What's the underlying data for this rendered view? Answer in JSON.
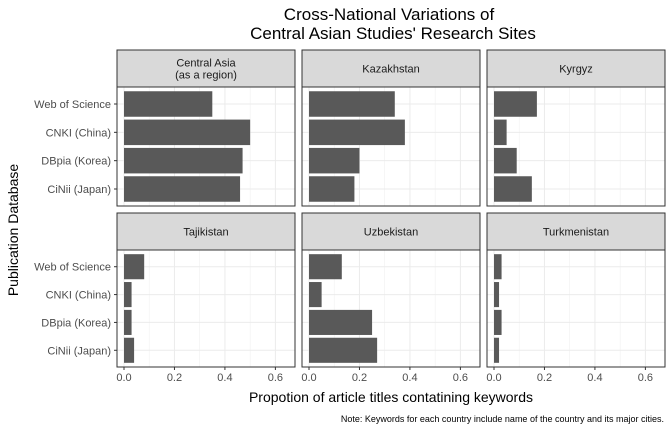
{
  "chart_data": {
    "type": "bar",
    "orientation": "horizontal",
    "title": [
      "Cross-National Variations of",
      "Central Asian Studies' Research Sites"
    ],
    "xlabel": "Propotion of article titles contatining keywords",
    "ylabel": "Publication Database",
    "note": "Note: Keywords for each country include name of the country and its major cities.",
    "categories": [
      "Web of Science",
      "CNKI (China)",
      "DBpia (Korea)",
      "CiNii (Japan)"
    ],
    "xlim": [
      0,
      0.65
    ],
    "xticks": [
      0.0,
      0.2,
      0.4,
      0.6
    ],
    "xtick_labels": [
      "0.0",
      "0.2",
      "0.4",
      "0.6"
    ],
    "grid": true,
    "bar_color": "#595959",
    "panels": [
      {
        "name": [
          "Central Asia",
          "(as a region)"
        ],
        "values": [
          0.35,
          0.5,
          0.47,
          0.46
        ]
      },
      {
        "name": [
          "Kazakhstan"
        ],
        "values": [
          0.34,
          0.38,
          0.2,
          0.18
        ]
      },
      {
        "name": [
          "Kyrgyz"
        ],
        "values": [
          0.17,
          0.05,
          0.09,
          0.15
        ]
      },
      {
        "name": [
          "Tajikistan"
        ],
        "values": [
          0.08,
          0.03,
          0.03,
          0.04
        ]
      },
      {
        "name": [
          "Uzbekistan"
        ],
        "values": [
          0.13,
          0.05,
          0.25,
          0.27
        ]
      },
      {
        "name": [
          "Turkmenistan"
        ],
        "values": [
          0.03,
          0.02,
          0.03,
          0.02
        ]
      }
    ]
  }
}
